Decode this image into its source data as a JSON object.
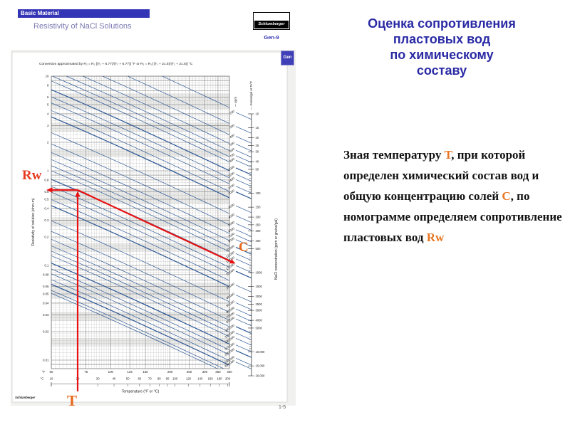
{
  "slide": {
    "header": {
      "badge": "Basic Material",
      "subtitle": "Resistivity of NaCl Solutions",
      "logo": "Schlumberger",
      "chart_ref": "Gen-9",
      "tab": "Gen"
    },
    "title_lines": [
      "Оценка сопротивления",
      "пластовых вод",
      "по химическому",
      "составу"
    ],
    "body_segments": [
      {
        "t": "Зная температуру ",
        "c": "k"
      },
      {
        "t": "Т",
        "c": "o"
      },
      {
        "t": ", при которой определен химический состав вод и общую концентрацию солей ",
        "c": "k"
      },
      {
        "t": "С",
        "c": "o"
      },
      {
        "t": ", по номограмме определяем сопротивление пластовых вод ",
        "c": "k"
      },
      {
        "t": "Rw",
        "c": "o"
      }
    ],
    "annotations": {
      "rw": "Rw",
      "t": "T",
      "c": "C"
    },
    "page_number": "1-5"
  },
  "chart_data": {
    "type": "line",
    "title": "Conversion approximated by R₂ = R₁ [(T₁ + 6.77)/(T₂ + 6.77)] °F or R₂ = R₁ [(T₁ + 21.5)/(T₂ + 21.5)] °C",
    "xlabel": "Temperature (°F or °C)",
    "ylabel": "Resistivity of solution (ohm-m)",
    "right_axis_label": "NaCl concentration (ppm or grains/gal)",
    "scale_header_ppm": "— ppm",
    "scale_header_grains": "— Grains/gal at 75°F",
    "brand": "Schlumberger",
    "x_scale": "log",
    "y_scale": "log",
    "xlim_F": [
      50,
      400
    ],
    "ylim_ohmm": [
      0.01,
      10
    ],
    "f_ticks": [
      50,
      75,
      100,
      125,
      150,
      200,
      250,
      300,
      350,
      400
    ],
    "c_ticks": [
      10,
      20,
      30,
      40,
      50,
      60,
      70,
      80,
      90,
      100,
      120,
      140,
      160,
      180,
      200
    ],
    "y_ticks": [
      "10",
      "8",
      "6",
      "5",
      "4",
      "3",
      "2",
      "1",
      "0.8",
      "0.6",
      "0.5",
      "0.4",
      "0.3",
      "0.2",
      "0.1",
      "0.08",
      "0.06",
      "0.05",
      "0.04",
      "0.03",
      "0.02",
      "0.01"
    ],
    "f_unit": "°F",
    "c_unit": "°C",
    "ppm_isolines": [
      200,
      300,
      400,
      500,
      600,
      700,
      800,
      1000,
      1200,
      1400,
      1700,
      2000,
      3000,
      4000,
      5000,
      6000,
      7000,
      8000,
      10000,
      12000,
      14000,
      17000,
      20000,
      30000,
      40000,
      50000,
      60000,
      70000,
      80000,
      100000,
      120000,
      140000,
      170000,
      200000,
      250000,
      280000
    ],
    "bold_isolines": [
      1000,
      2000,
      10000,
      20000,
      100000,
      200000
    ],
    "grains_ticks": [
      10,
      15,
      20,
      25,
      30,
      40,
      50,
      100,
      150,
      200,
      250,
      300,
      400,
      500,
      1000,
      1500,
      2000,
      2500,
      3000,
      4000,
      5000,
      10000,
      15000,
      20000
    ],
    "annotation_reading": {
      "T_F": 68,
      "T_C": 20,
      "Rw_ohmm": 0.6,
      "C_ppm": 10000
    },
    "isoline_color": "#2f5a96",
    "arrow_color": "#e81212"
  }
}
